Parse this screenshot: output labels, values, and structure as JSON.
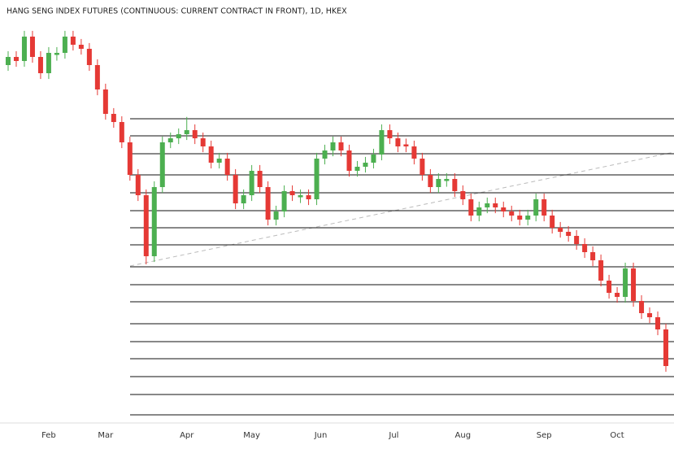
{
  "chart_data": {
    "type": "candlestick",
    "title": "HANG SENG INDEX FUTURES (CONTINUOUS: CURRENT CONTRACT IN FRONT), 1D, HKEX",
    "up_color": "#4caf50",
    "down_color": "#e53935",
    "level_color": "#111111",
    "xlim": [
      -1,
      82
    ],
    "xticks": [
      {
        "value": 5,
        "label": "Feb"
      },
      {
        "value": 12,
        "label": "Mar"
      },
      {
        "value": 22,
        "label": "Apr"
      },
      {
        "value": 30,
        "label": "May"
      },
      {
        "value": 38.5,
        "label": "Jun"
      },
      {
        "value": 47.5,
        "label": "Jul"
      },
      {
        "value": 56,
        "label": "Aug"
      },
      {
        "value": 66,
        "label": "Sep"
      },
      {
        "value": 75,
        "label": "Oct"
      }
    ],
    "ylim": [
      13270,
      25750
    ],
    "open": [
      23830,
      24070,
      23950,
      24670,
      24070,
      23590,
      24130,
      24190,
      24670,
      24430,
      24310,
      23830,
      23110,
      22390,
      22150,
      21550,
      20590,
      19990,
      18190,
      20230,
      21550,
      21670,
      21790,
      21910,
      21670,
      21430,
      20950,
      21070,
      20590,
      19750,
      19990,
      20710,
      20230,
      19270,
      19510,
      20110,
      19930,
      19990,
      19870,
      21070,
      21310,
      21550,
      21310,
      20710,
      20830,
      20950,
      21190,
      21910,
      21670,
      21490,
      21430,
      21070,
      20590,
      20230,
      20410,
      20470,
      20110,
      19870,
      19390,
      19630,
      19750,
      19630,
      19510,
      19390,
      19270,
      19390,
      19870,
      19390,
      19030,
      18910,
      18790,
      18550,
      18310,
      18070,
      17470,
      17110,
      16990,
      17830,
      16870,
      16510,
      16390,
      16030
    ],
    "high": [
      24240,
      24240,
      24840,
      24840,
      24240,
      24360,
      24360,
      24840,
      24840,
      24600,
      24480,
      24000,
      23280,
      22560,
      22320,
      21720,
      20760,
      20160,
      20400,
      21720,
      21840,
      21960,
      22300,
      22080,
      21840,
      21600,
      21240,
      21240,
      20760,
      20160,
      20880,
      20880,
      20400,
      19680,
      20280,
      20280,
      20160,
      20160,
      21240,
      21480,
      21720,
      21720,
      21480,
      21000,
      21120,
      21360,
      22080,
      22080,
      21840,
      21660,
      21600,
      21240,
      20760,
      20640,
      20640,
      20640,
      20280,
      20040,
      19800,
      19920,
      19920,
      19800,
      19680,
      19560,
      19560,
      20040,
      20040,
      19560,
      19200,
      19080,
      18960,
      18720,
      18480,
      18240,
      17640,
      17280,
      18000,
      18000,
      17040,
      16680,
      16560,
      16200
    ],
    "low": [
      23660,
      23780,
      23780,
      23900,
      23420,
      23420,
      23960,
      24020,
      24260,
      24140,
      23660,
      22940,
      22220,
      21980,
      21380,
      20420,
      19820,
      17950,
      18020,
      20060,
      21380,
      21500,
      21620,
      21500,
      21260,
      20780,
      20780,
      20420,
      19580,
      19580,
      19820,
      20060,
      19100,
      19100,
      19340,
      19820,
      19760,
      19700,
      19700,
      20900,
      21140,
      21140,
      20540,
      20540,
      20660,
      20780,
      21020,
      21500,
      21260,
      21260,
      20900,
      20420,
      20060,
      20060,
      20240,
      19940,
      19700,
      19220,
      19220,
      19460,
      19460,
      19340,
      19220,
      19100,
      19100,
      19220,
      19220,
      18860,
      18740,
      18620,
      18380,
      18140,
      17900,
      17300,
      16940,
      16820,
      16820,
      16700,
      16340,
      16220,
      15860,
      14780
    ],
    "close": [
      24070,
      23950,
      24670,
      24070,
      23590,
      24190,
      24190,
      24670,
      24430,
      24310,
      23830,
      23110,
      22390,
      22150,
      21550,
      20590,
      19990,
      18190,
      20230,
      21550,
      21670,
      21790,
      21910,
      21670,
      21430,
      20950,
      21070,
      20590,
      19750,
      19990,
      20710,
      20230,
      19270,
      19510,
      20110,
      19990,
      19990,
      19870,
      21070,
      21310,
      21550,
      21310,
      20710,
      20830,
      20950,
      21190,
      21910,
      21670,
      21430,
      21430,
      21070,
      20590,
      20230,
      20470,
      20470,
      20110,
      19870,
      19390,
      19630,
      19750,
      19630,
      19510,
      19390,
      19270,
      19390,
      19870,
      19390,
      19030,
      18910,
      18790,
      18550,
      18310,
      18070,
      17470,
      17110,
      16990,
      17830,
      16870,
      16510,
      16390,
      16030,
      14950
    ],
    "levels": [
      22246,
      21742,
      21214,
      20590,
      20062,
      19534,
      19030,
      18526,
      17878,
      17350,
      16846,
      16198,
      15670,
      15166,
      14638,
      14110,
      13510
    ]
  }
}
